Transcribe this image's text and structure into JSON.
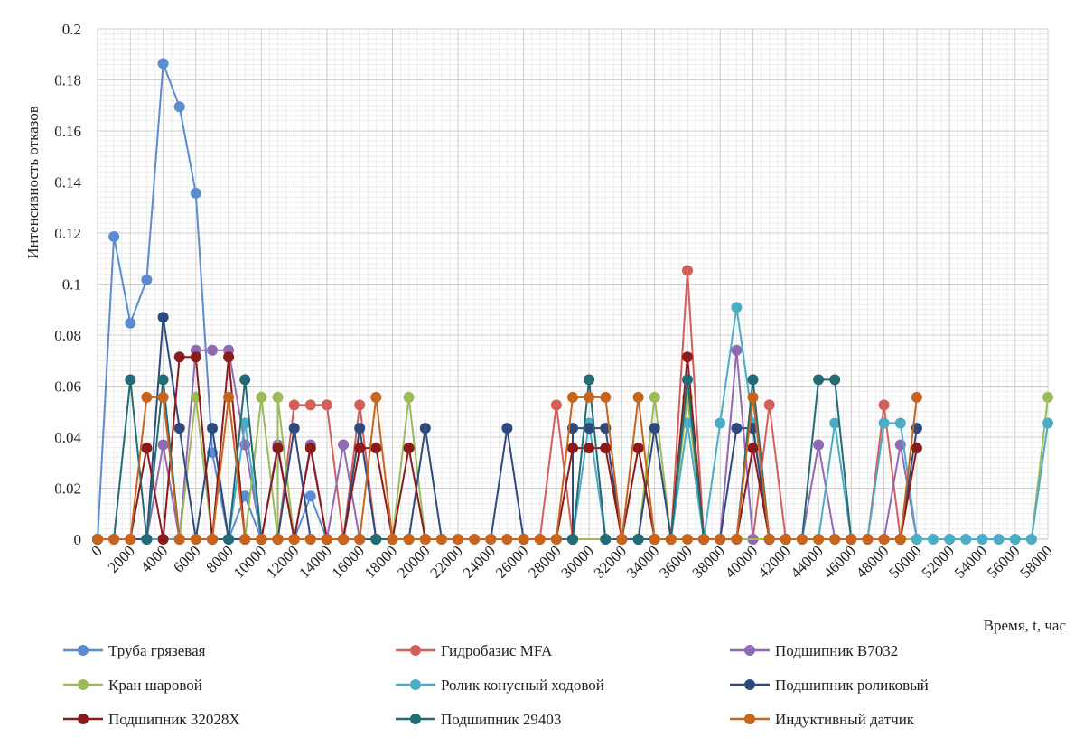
{
  "chart_data": {
    "type": "line",
    "title": "",
    "xlabel": "Время, t, час",
    "ylabel": "Интенсивность отказов",
    "ylim": [
      0,
      0.2
    ],
    "yticks": [
      "0",
      "0.02",
      "0.04",
      "0.06",
      "0.08",
      "0.1",
      "0.12",
      "0.14",
      "0.16",
      "0.18",
      "0.2"
    ],
    "xticks": [
      "0",
      "2000",
      "4000",
      "6000",
      "8000",
      "10000",
      "12000",
      "14000",
      "16000",
      "18000",
      "20000",
      "22000",
      "24000",
      "26000",
      "28000",
      "30000",
      "32000",
      "34000",
      "36000",
      "38000",
      "40000",
      "42000",
      "44000",
      "46000",
      "48000",
      "50000",
      "52000",
      "54000",
      "56000",
      "58000"
    ],
    "grid": true,
    "legend_position": "bottom",
    "series": [
      {
        "name": "Труба грязевая",
        "color": "#5B8BD0",
        "points": [
          [
            0,
            0
          ],
          [
            1000,
            0.1186
          ],
          [
            2000,
            0.0847
          ],
          [
            3000,
            0.1017
          ],
          [
            4000,
            0.1864
          ],
          [
            5000,
            0.1695
          ],
          [
            6000,
            0.1356
          ],
          [
            7000,
            0.0339
          ],
          [
            8000,
            0
          ],
          [
            9000,
            0.0169
          ],
          [
            10000,
            0
          ],
          [
            11000,
            0
          ],
          [
            12000,
            0
          ],
          [
            13000,
            0.0169
          ],
          [
            14000,
            0
          ]
        ]
      },
      {
        "name": "Гидробазис MFA",
        "color": "#D45F5A",
        "points": [
          [
            0,
            0
          ],
          [
            11000,
            0
          ],
          [
            12000,
            0.0526
          ],
          [
            13000,
            0.0526
          ],
          [
            14000,
            0.0526
          ],
          [
            15000,
            0
          ],
          [
            16000,
            0.0526
          ],
          [
            17000,
            0
          ],
          [
            27000,
            0
          ],
          [
            28000,
            0.0526
          ],
          [
            29000,
            0
          ],
          [
            35000,
            0
          ],
          [
            36000,
            0.1053
          ],
          [
            37000,
            0
          ],
          [
            40000,
            0
          ],
          [
            41000,
            0.0526
          ],
          [
            42000,
            0
          ],
          [
            47000,
            0
          ],
          [
            48000,
            0.0526
          ],
          [
            49000,
            0
          ]
        ]
      },
      {
        "name": "Подшипник B7032",
        "color": "#8E6BB4",
        "points": [
          [
            0,
            0
          ],
          [
            3000,
            0
          ],
          [
            4000,
            0.037
          ],
          [
            5000,
            0
          ],
          [
            6000,
            0.0741
          ],
          [
            7000,
            0.0741
          ],
          [
            8000,
            0.0741
          ],
          [
            9000,
            0.037
          ],
          [
            10000,
            0
          ],
          [
            11000,
            0.037
          ],
          [
            12000,
            0
          ],
          [
            13000,
            0.037
          ],
          [
            14000,
            0
          ],
          [
            15000,
            0.037
          ],
          [
            16000,
            0
          ],
          [
            38000,
            0
          ],
          [
            39000,
            0.0741
          ],
          [
            40000,
            0
          ],
          [
            43000,
            0
          ],
          [
            44000,
            0.037
          ],
          [
            45000,
            0
          ],
          [
            48000,
            0
          ],
          [
            49000,
            0.037
          ],
          [
            50000,
            0
          ]
        ]
      },
      {
        "name": "Кран шаровой",
        "color": "#9BBB59",
        "points": [
          [
            0,
            0
          ],
          [
            5000,
            0
          ],
          [
            6000,
            0.0556
          ],
          [
            7000,
            0
          ],
          [
            9000,
            0
          ],
          [
            10000,
            0.0556
          ],
          [
            11000,
            0
          ],
          [
            11000,
            0.0556
          ],
          [
            12000,
            0
          ],
          [
            18000,
            0
          ],
          [
            19000,
            0.0556
          ],
          [
            20000,
            0
          ],
          [
            33000,
            0
          ],
          [
            34000,
            0.0556
          ],
          [
            35000,
            0
          ],
          [
            36000,
            0.0556
          ],
          [
            37000,
            0
          ],
          [
            57000,
            0
          ],
          [
            58000,
            0.0556
          ]
        ]
      },
      {
        "name": "Ролик конусный ходовой",
        "color": "#4BACC6",
        "points": [
          [
            0,
            0
          ],
          [
            8000,
            0
          ],
          [
            9000,
            0.0455
          ],
          [
            10000,
            0
          ],
          [
            29000,
            0
          ],
          [
            30000,
            0.0455
          ],
          [
            31000,
            0
          ],
          [
            35000,
            0
          ],
          [
            36000,
            0.0455
          ],
          [
            37000,
            0
          ],
          [
            38000,
            0.0455
          ],
          [
            39000,
            0.0909
          ],
          [
            40000,
            0.0455
          ],
          [
            41000,
            0
          ],
          [
            44000,
            0
          ],
          [
            45000,
            0.0455
          ],
          [
            46000,
            0
          ],
          [
            47000,
            0
          ],
          [
            48000,
            0.0455
          ],
          [
            49000,
            0.0455
          ],
          [
            50000,
            0
          ],
          [
            51000,
            0
          ],
          [
            52000,
            0
          ],
          [
            53000,
            0
          ],
          [
            54000,
            0
          ],
          [
            55000,
            0
          ],
          [
            56000,
            0
          ],
          [
            57000,
            0
          ],
          [
            58000,
            0.0455
          ]
        ]
      },
      {
        "name": "Подшипник роликовый",
        "color": "#2E4A7D",
        "points": [
          [
            0,
            0
          ],
          [
            3000,
            0
          ],
          [
            4000,
            0.087
          ],
          [
            5000,
            0.0435
          ],
          [
            6000,
            0
          ],
          [
            7000,
            0.0435
          ],
          [
            8000,
            0
          ],
          [
            11000,
            0
          ],
          [
            12000,
            0.0435
          ],
          [
            13000,
            0
          ],
          [
            15000,
            0
          ],
          [
            16000,
            0.0435
          ],
          [
            17000,
            0
          ],
          [
            19000,
            0
          ],
          [
            20000,
            0.0435
          ],
          [
            21000,
            0
          ],
          [
            24000,
            0
          ],
          [
            25000,
            0.0435
          ],
          [
            26000,
            0
          ],
          [
            29000,
            0
          ],
          [
            29000,
            0.0435
          ],
          [
            30000,
            0.0435
          ],
          [
            31000,
            0.0435
          ],
          [
            32000,
            0
          ],
          [
            33000,
            0
          ],
          [
            34000,
            0.0435
          ],
          [
            35000,
            0
          ],
          [
            38000,
            0
          ],
          [
            39000,
            0.0435
          ],
          [
            40000,
            0.0435
          ],
          [
            41000,
            0
          ],
          [
            49000,
            0
          ],
          [
            50000,
            0.0435
          ]
        ]
      },
      {
        "name": "Подшипник 32028X",
        "color": "#8B1A1A",
        "points": [
          [
            0,
            0
          ],
          [
            2000,
            0
          ],
          [
            3000,
            0.0357
          ],
          [
            4000,
            0
          ],
          [
            5000,
            0.0714
          ],
          [
            6000,
            0.0714
          ],
          [
            7000,
            0
          ],
          [
            8000,
            0.0714
          ],
          [
            9000,
            0
          ],
          [
            10000,
            0
          ],
          [
            11000,
            0.0357
          ],
          [
            12000,
            0
          ],
          [
            13000,
            0.0357
          ],
          [
            14000,
            0
          ],
          [
            15000,
            0
          ],
          [
            16000,
            0.0357
          ],
          [
            17000,
            0.0357
          ],
          [
            18000,
            0
          ],
          [
            19000,
            0.0357
          ],
          [
            20000,
            0
          ],
          [
            28000,
            0
          ],
          [
            29000,
            0.0357
          ],
          [
            30000,
            0.0357
          ],
          [
            31000,
            0.0357
          ],
          [
            32000,
            0
          ],
          [
            33000,
            0.0357
          ],
          [
            34000,
            0
          ],
          [
            35000,
            0
          ],
          [
            36000,
            0.0714
          ],
          [
            37000,
            0
          ],
          [
            39000,
            0
          ],
          [
            40000,
            0.0357
          ],
          [
            41000,
            0
          ],
          [
            49000,
            0
          ],
          [
            50000,
            0.0357
          ]
        ]
      },
      {
        "name": "Подшипник 29403",
        "color": "#236B75",
        "points": [
          [
            0,
            0
          ],
          [
            1000,
            0
          ],
          [
            2000,
            0.0625
          ],
          [
            3000,
            0
          ],
          [
            4000,
            0.0625
          ],
          [
            5000,
            0
          ],
          [
            7000,
            0
          ],
          [
            8000,
            0
          ],
          [
            9000,
            0.0625
          ],
          [
            10000,
            0
          ],
          [
            16000,
            0
          ],
          [
            17000,
            0
          ],
          [
            29000,
            0
          ],
          [
            30000,
            0.0625
          ],
          [
            31000,
            0
          ],
          [
            32000,
            0
          ],
          [
            33000,
            0
          ],
          [
            35000,
            0
          ],
          [
            36000,
            0.0625
          ],
          [
            37000,
            0
          ],
          [
            39000,
            0
          ],
          [
            40000,
            0.0625
          ],
          [
            41000,
            0
          ],
          [
            42000,
            0
          ],
          [
            43000,
            0
          ],
          [
            44000,
            0.0625
          ],
          [
            45000,
            0.0625
          ],
          [
            46000,
            0
          ]
        ]
      },
      {
        "name": "Индуктивный датчик",
        "color": "#C7651F",
        "points": [
          [
            0,
            0
          ],
          [
            1000,
            0
          ],
          [
            2000,
            0
          ],
          [
            3000,
            0.0556
          ],
          [
            4000,
            0.0556
          ],
          [
            5000,
            0
          ],
          [
            6000,
            0
          ],
          [
            7000,
            0
          ],
          [
            8000,
            0.0556
          ],
          [
            9000,
            0
          ],
          [
            10000,
            0
          ],
          [
            11000,
            0
          ],
          [
            12000,
            0
          ],
          [
            13000,
            0
          ],
          [
            14000,
            0
          ],
          [
            15000,
            0
          ],
          [
            16000,
            0
          ],
          [
            17000,
            0.0556
          ],
          [
            18000,
            0
          ],
          [
            19000,
            0
          ],
          [
            20000,
            0
          ],
          [
            21000,
            0
          ],
          [
            22000,
            0
          ],
          [
            23000,
            0
          ],
          [
            24000,
            0
          ],
          [
            25000,
            0
          ],
          [
            26000,
            0
          ],
          [
            27000,
            0
          ],
          [
            28000,
            0
          ],
          [
            29000,
            0.0556
          ],
          [
            30000,
            0.0556
          ],
          [
            31000,
            0.0556
          ],
          [
            32000,
            0
          ],
          [
            33000,
            0.0556
          ],
          [
            34000,
            0
          ],
          [
            35000,
            0
          ],
          [
            36000,
            0
          ],
          [
            37000,
            0
          ],
          [
            38000,
            0
          ],
          [
            39000,
            0
          ],
          [
            40000,
            0.0556
          ],
          [
            41000,
            0
          ],
          [
            42000,
            0
          ],
          [
            43000,
            0
          ],
          [
            44000,
            0
          ],
          [
            45000,
            0
          ],
          [
            46000,
            0
          ],
          [
            47000,
            0
          ],
          [
            48000,
            0
          ],
          [
            49000,
            0
          ],
          [
            50000,
            0.0556
          ]
        ]
      }
    ]
  }
}
